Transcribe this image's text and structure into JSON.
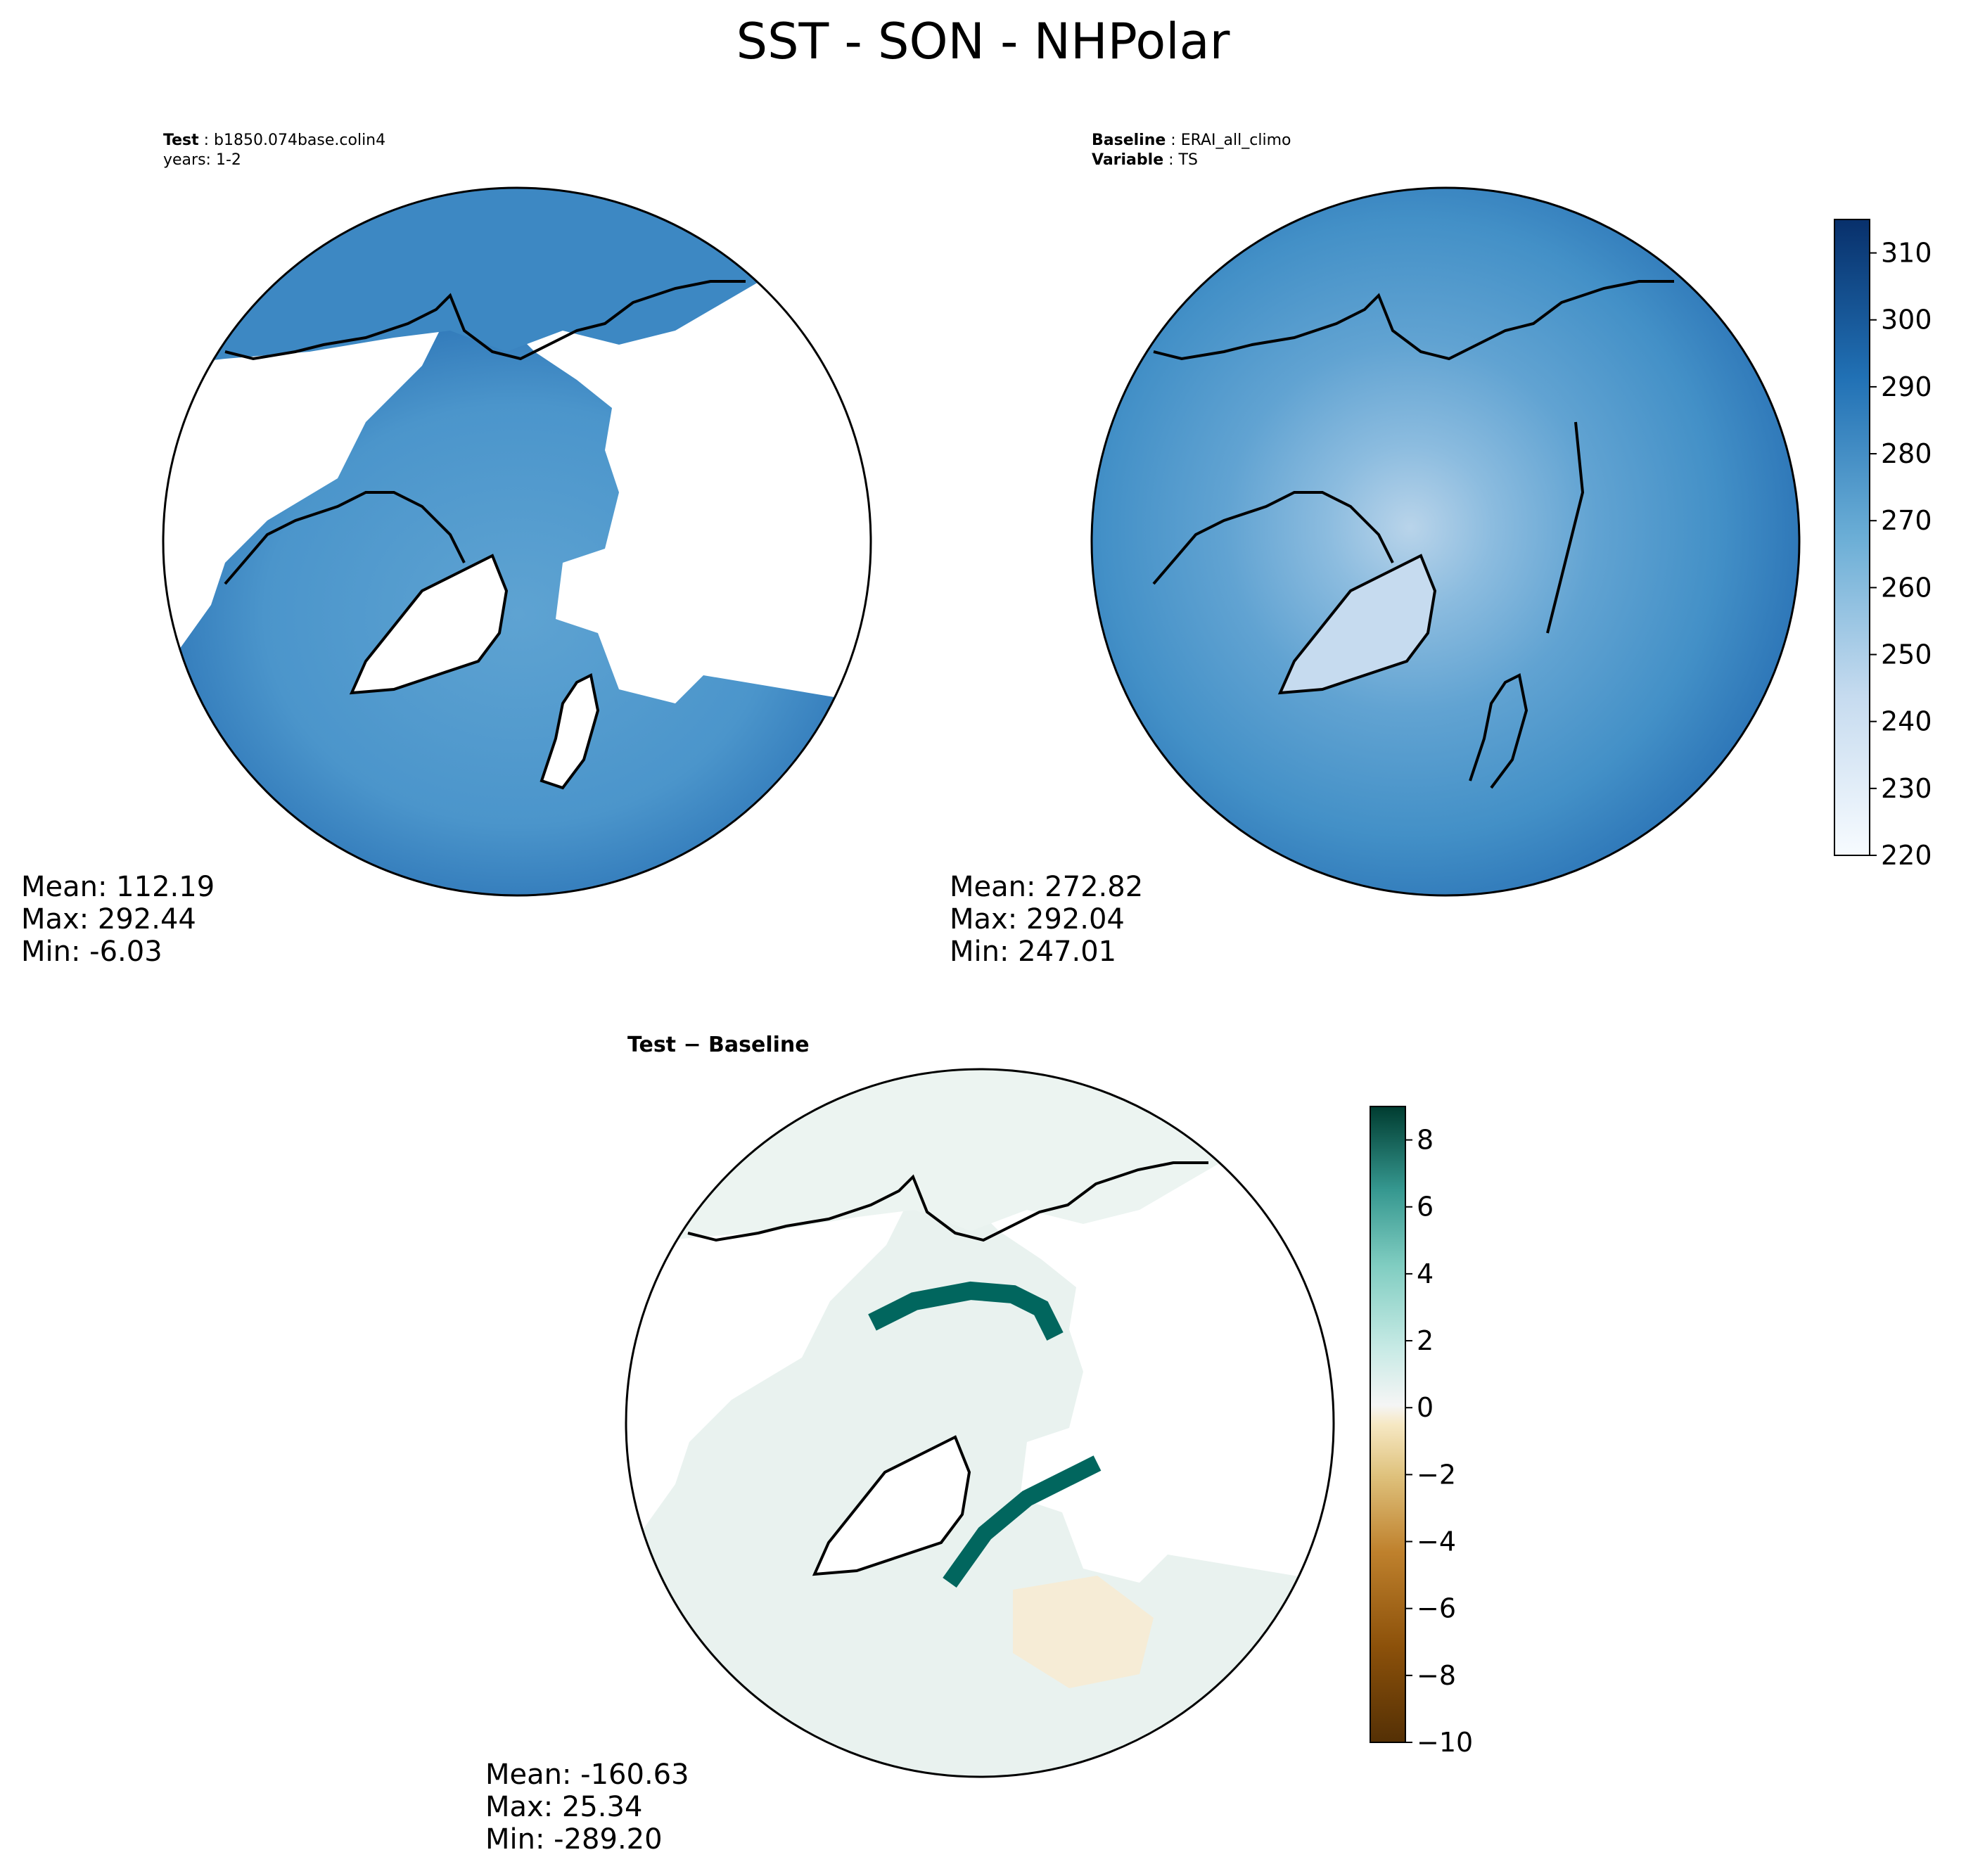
{
  "figure": {
    "title": "SST - SON - NHPolar"
  },
  "panels": {
    "test": {
      "header_label_bold": "Test",
      "header_value": "b1850.074base.colin4",
      "header_line2": "years: 1-2",
      "mean": "Mean: 112.19",
      "max": "Max: 292.44",
      "min": "Min: -6.03"
    },
    "baseline": {
      "header_label_bold": "Baseline",
      "header_value": "ERAI_all_climo",
      "header_label2_bold": "Variable",
      "header_value2": "TS",
      "mean": "Mean: 272.82",
      "max": "Max: 292.04",
      "min": "Min: 247.01"
    },
    "difference": {
      "title": "Test − Baseline",
      "mean": "Mean: -160.63",
      "max": "Max: 25.34",
      "min": "Min: -289.20"
    }
  },
  "colors": {
    "ocean_test": "#4a95cb",
    "ocean_baseline": "#4a92c8",
    "outer_ring": "#2f7bbd",
    "diff_ocean": "#e9f2ef",
    "diff_positive_strong": "#01665e",
    "diff_negative": "#dfc27d"
  },
  "chart_data": [
    {
      "type": "heatmap",
      "name": "Test",
      "projection": "North Polar Stereographic",
      "colormap": "Blues",
      "clim": [
        220,
        315
      ],
      "colorbar_ticks": [
        "220",
        "230",
        "240",
        "250",
        "260",
        "270",
        "280",
        "290",
        "300",
        "310"
      ],
      "stats": {
        "mean": 112.19,
        "max": 292.44,
        "min": -6.03
      }
    },
    {
      "type": "heatmap",
      "name": "Baseline",
      "projection": "North Polar Stereographic",
      "colormap": "Blues",
      "clim": [
        220,
        315
      ],
      "colorbar_ticks": [
        "220",
        "230",
        "240",
        "250",
        "260",
        "270",
        "280",
        "290",
        "300",
        "310"
      ],
      "stats": {
        "mean": 272.82,
        "max": 292.04,
        "min": 247.01
      }
    },
    {
      "type": "heatmap",
      "name": "Test − Baseline",
      "projection": "North Polar Stereographic",
      "colormap": "BrBG",
      "clim": [
        -10,
        9
      ],
      "colorbar_ticks": [
        "−10",
        "−8",
        "−6",
        "−4",
        "−2",
        "0",
        "2",
        "4",
        "6",
        "8"
      ],
      "stats": {
        "mean": -160.63,
        "max": 25.34,
        "min": -289.2
      }
    }
  ]
}
